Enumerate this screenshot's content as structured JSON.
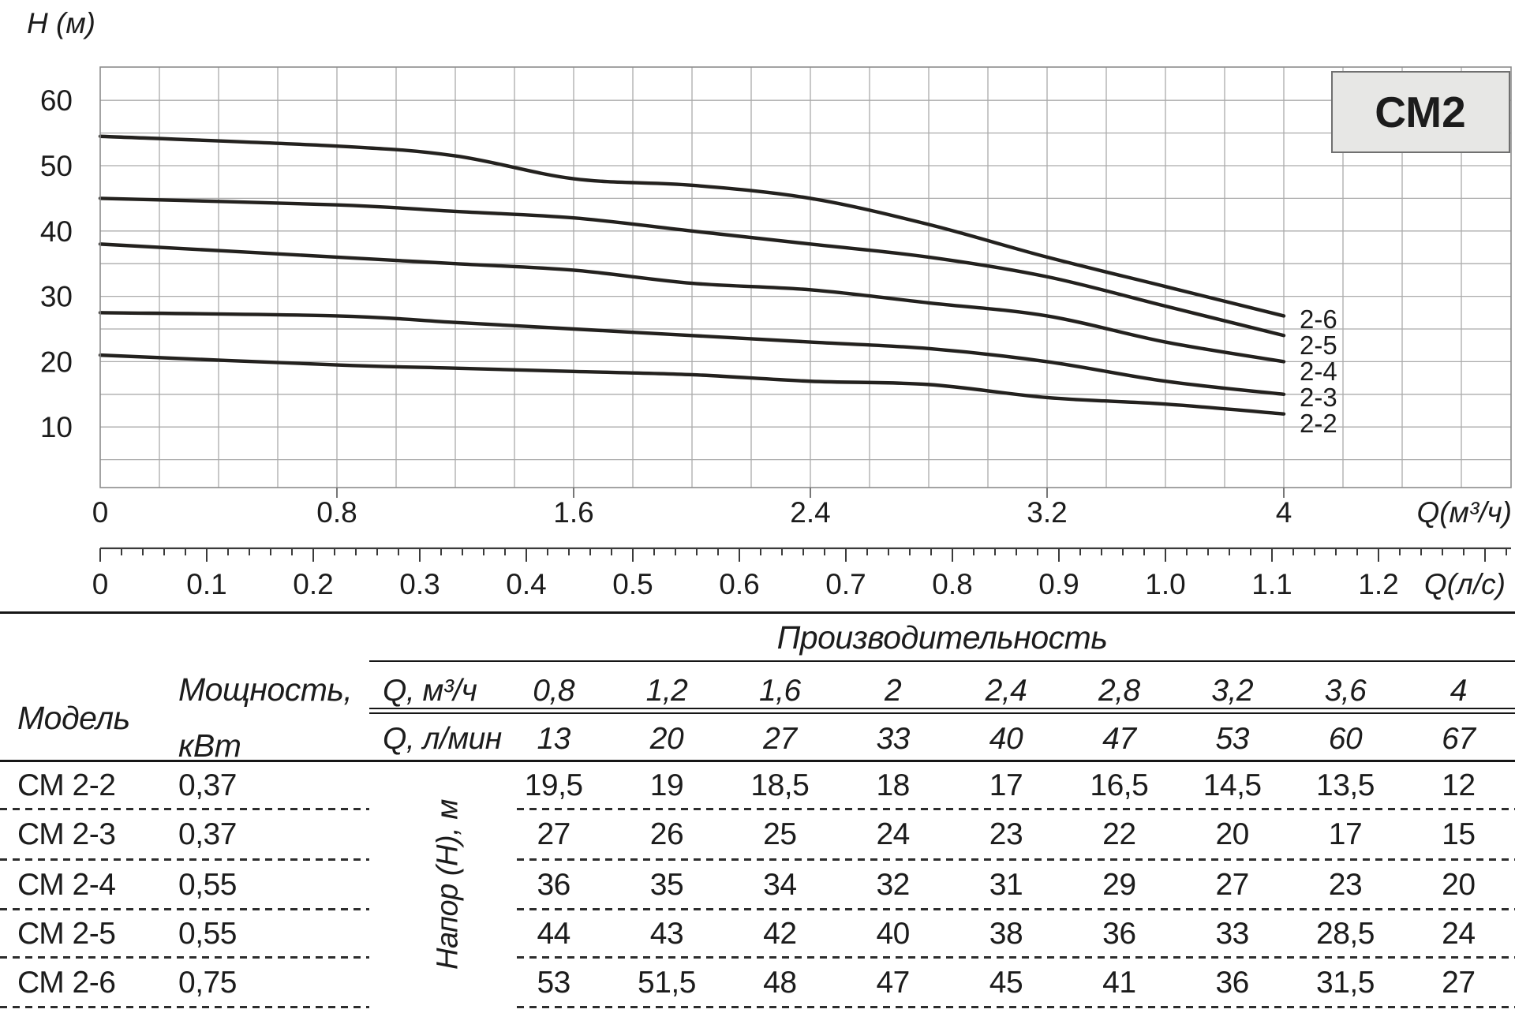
{
  "chart": {
    "y_axis_label": "Н (м)",
    "x_axis_primary_label": "Q(м³/ч)",
    "x_axis_secondary_label": "Q(л/с)",
    "badge": "СМ2",
    "y_ticks": [
      "10",
      "20",
      "30",
      "40",
      "50",
      "60"
    ],
    "x_primary_tick_values": [
      0,
      0.8,
      1.6,
      2.4,
      3.2,
      4
    ],
    "x_primary_tick_labels": [
      "0",
      "0.8",
      "1.6",
      "2.4",
      "3.2",
      "4"
    ],
    "x_secondary_tick_labels": [
      "0",
      "0.1",
      "0.2",
      "0.3",
      "0.4",
      "0.5",
      "0.6",
      "0.7",
      "0.8",
      "0.9",
      "1.0",
      "1.1",
      "1.2"
    ],
    "curve_labels": [
      "2-6",
      "2-5",
      "2-4",
      "2-3",
      "2-2"
    ]
  },
  "chart_data": {
    "type": "line",
    "title": "СМ2",
    "xlabel": "Q(м³/ч)",
    "xlabel_secondary": "Q(л/с)",
    "ylabel": "Н (м)",
    "x": [
      0,
      0.8,
      1.2,
      1.6,
      2,
      2.4,
      2.8,
      3.2,
      3.6,
      4
    ],
    "series": [
      {
        "name": "2-2",
        "values": [
          21,
          19.5,
          19,
          18.5,
          18,
          17,
          16.5,
          14.5,
          13.5,
          12
        ]
      },
      {
        "name": "2-3",
        "values": [
          27.5,
          27,
          26,
          25,
          24,
          23,
          22,
          20,
          17,
          15
        ]
      },
      {
        "name": "2-4",
        "values": [
          38,
          36,
          35,
          34,
          32,
          31,
          29,
          27,
          23,
          20
        ]
      },
      {
        "name": "2-5",
        "values": [
          45,
          44,
          43,
          42,
          40,
          38,
          36,
          33,
          28.5,
          24
        ]
      },
      {
        "name": "2-6",
        "values": [
          54.5,
          53,
          51.5,
          48,
          47,
          45,
          41,
          36,
          31.5,
          27
        ]
      }
    ],
    "xlim": [
      0,
      4.77
    ],
    "ylim": [
      0,
      65
    ],
    "x_major_ticks": [
      0,
      0.8,
      1.6,
      2.4,
      3.2,
      4
    ],
    "x_minor_step": 0.2,
    "y_minor_step": 5,
    "secondary_axis_unit_ratio": 3.6,
    "grid": true,
    "legend_position": "right-of-curve-ends"
  },
  "table": {
    "model_header": "Модель",
    "power_header_line1": "Мощность,",
    "power_header_line2": "кВт",
    "group_header": "Производительность",
    "q_m3h_label": "Q, м³/ч",
    "q_m3h_values": [
      "0,8",
      "1,2",
      "1,6",
      "2",
      "2,4",
      "2,8",
      "3,2",
      "3,6",
      "4"
    ],
    "q_lmin_label": "Q, л/мин",
    "q_lmin_values": [
      "13",
      "20",
      "27",
      "33",
      "40",
      "47",
      "53",
      "60",
      "67"
    ],
    "head_col_label": "Напор (Н), м",
    "rows": [
      {
        "model": "СМ 2-2",
        "power": "0,37",
        "values": [
          "19,5",
          "19",
          "18,5",
          "18",
          "17",
          "16,5",
          "14,5",
          "13,5",
          "12"
        ]
      },
      {
        "model": "СМ 2-3",
        "power": "0,37",
        "values": [
          "27",
          "26",
          "25",
          "24",
          "23",
          "22",
          "20",
          "17",
          "15"
        ]
      },
      {
        "model": "СМ 2-4",
        "power": "0,55",
        "values": [
          "36",
          "35",
          "34",
          "32",
          "31",
          "29",
          "27",
          "23",
          "20"
        ]
      },
      {
        "model": "СМ 2-5",
        "power": "0,55",
        "values": [
          "44",
          "43",
          "42",
          "40",
          "38",
          "36",
          "33",
          "28,5",
          "24"
        ]
      },
      {
        "model": "СМ 2-6",
        "power": "0,75",
        "values": [
          "53",
          "51,5",
          "48",
          "47",
          "45",
          "41",
          "36",
          "31,5",
          "27"
        ]
      }
    ]
  },
  "colors": {
    "ink": "#1c1c1c",
    "grid_line": "#ababab",
    "plot_border": "#8c8c8c",
    "curve": "#23211e",
    "badge_fill": "#e7e7e5",
    "badge_border": "#707070",
    "rule": "#161616",
    "ruler_axis": "#3a3a3a"
  }
}
